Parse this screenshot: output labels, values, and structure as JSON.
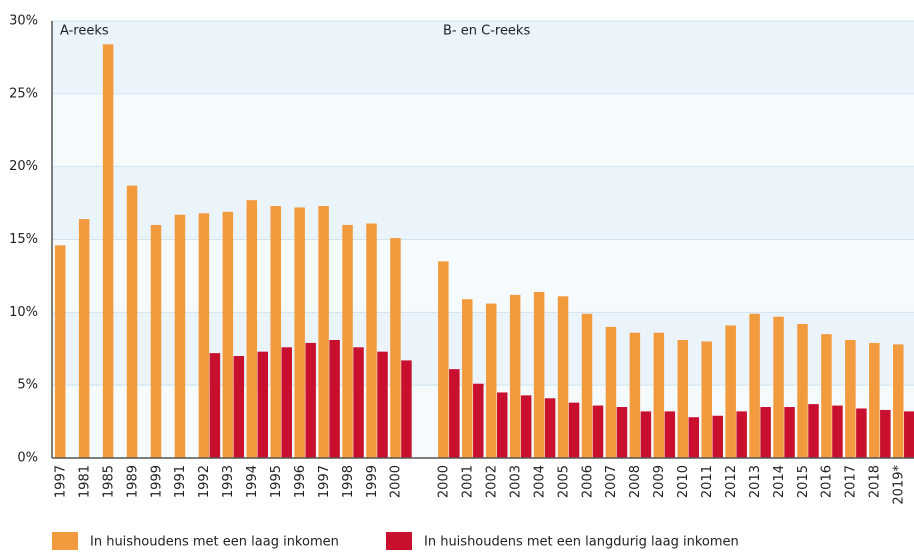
{
  "chart_data": {
    "type": "bar",
    "annotations": [
      "A-reeks",
      "B- en C-reeks"
    ],
    "categories": [
      "1997",
      "1981",
      "1985",
      "1989",
      "1999",
      "1991",
      "1992",
      "1993",
      "1994",
      "1995",
      "1996",
      "1997",
      "1998",
      "1999",
      "2000",
      null,
      "2000",
      "2001",
      "2002",
      "2003",
      "2004",
      "2005",
      "2006",
      "2007",
      "2008",
      "2009",
      "2010",
      "2011",
      "2012",
      "2013",
      "2014",
      "2015",
      "2016",
      "2017",
      "2018",
      "2019*"
    ],
    "series": [
      {
        "name": "In huishoudens met een laag inkomen",
        "color": "#f29a3e",
        "values": [
          14.6,
          16.4,
          28.4,
          18.7,
          16.0,
          16.7,
          16.8,
          16.9,
          17.7,
          17.3,
          17.2,
          17.3,
          16.0,
          16.1,
          15.1,
          null,
          13.5,
          10.9,
          10.6,
          11.2,
          11.4,
          11.1,
          9.9,
          9.0,
          8.6,
          8.6,
          8.1,
          8.0,
          9.1,
          9.9,
          9.7,
          9.2,
          8.5,
          8.1,
          7.9,
          7.8
        ]
      },
      {
        "name": "In huishoudens met een langdurig laag inkomen",
        "color": "#c8102e",
        "values": [
          null,
          null,
          null,
          null,
          null,
          null,
          7.2,
          7.0,
          7.3,
          7.6,
          7.9,
          8.1,
          7.6,
          7.3,
          6.7,
          null,
          6.1,
          5.1,
          4.5,
          4.3,
          4.1,
          3.8,
          3.6,
          3.5,
          3.2,
          3.2,
          2.8,
          2.9,
          3.2,
          3.5,
          3.5,
          3.7,
          3.6,
          3.4,
          3.3,
          3.2
        ]
      }
    ],
    "ylim": [
      0,
      30
    ],
    "yticks": [
      {
        "value": 0,
        "label": "0%"
      },
      {
        "value": 5,
        "label": "5%"
      },
      {
        "value": 10,
        "label": "10%"
      },
      {
        "value": 15,
        "label": "15%"
      },
      {
        "value": 20,
        "label": "20%"
      },
      {
        "value": 25,
        "label": "25%"
      },
      {
        "value": 30,
        "label": "30%"
      }
    ],
    "grid": true
  }
}
